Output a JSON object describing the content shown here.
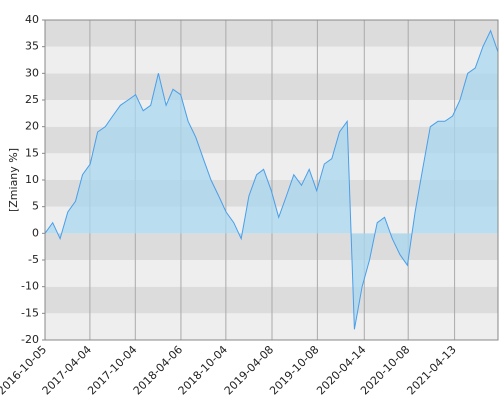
{
  "chart_data": {
    "type": "area",
    "ylabel": "[Zmiany %]",
    "x": [
      "2016-10-05",
      "2016-11-05",
      "2016-12-05",
      "2017-01-05",
      "2017-02-05",
      "2017-03-05",
      "2017-04-05",
      "2017-05-05",
      "2017-06-05",
      "2017-07-05",
      "2017-08-05",
      "2017-09-05",
      "2017-10-05",
      "2017-11-05",
      "2017-12-05",
      "2018-01-05",
      "2018-02-05",
      "2018-03-05",
      "2018-04-05",
      "2018-05-05",
      "2018-06-05",
      "2018-07-05",
      "2018-08-05",
      "2018-09-05",
      "2018-10-05",
      "2018-11-05",
      "2018-12-05",
      "2019-01-05",
      "2019-02-05",
      "2019-03-05",
      "2019-04-05",
      "2019-05-05",
      "2019-06-05",
      "2019-07-05",
      "2019-08-05",
      "2019-09-05",
      "2019-10-05",
      "2019-11-05",
      "2019-12-05",
      "2020-01-05",
      "2020-02-05",
      "2020-03-05",
      "2020-04-05",
      "2020-05-05",
      "2020-06-05",
      "2020-07-05",
      "2020-08-05",
      "2020-09-05",
      "2020-10-05",
      "2020-11-05",
      "2020-12-05",
      "2021-01-05",
      "2021-02-05",
      "2021-03-05",
      "2021-04-05",
      "2021-05-05",
      "2021-06-05",
      "2021-07-05",
      "2021-08-05",
      "2021-09-05",
      "2021-10-05"
    ],
    "values": [
      0,
      2,
      -1,
      4,
      6,
      11,
      13,
      19,
      20,
      22,
      24,
      25,
      26,
      23,
      24,
      30,
      24,
      27,
      26,
      21,
      18,
      14,
      10,
      7,
      4,
      2,
      -1,
      7,
      11,
      12,
      8,
      3,
      7,
      11,
      9,
      12,
      8,
      13,
      14,
      19,
      21,
      -18,
      -10,
      -5,
      2,
      3,
      -1,
      -4,
      -6,
      4,
      12,
      20,
      21,
      21,
      22,
      25,
      30,
      31,
      35,
      38,
      34
    ],
    "color": "#4a9ee8",
    "fill": "#a8d8ef",
    "xlim": [
      "2016-10-05",
      "2021-10-05"
    ],
    "xticks": [
      "2016-10-05",
      "2017-04-04",
      "2017-10-04",
      "2018-04-06",
      "2018-10-04",
      "2019-04-08",
      "2019-10-08",
      "2020-04-14",
      "2020-10-08",
      "2021-04-13"
    ],
    "ylim": [
      -20,
      40
    ],
    "yticks": [
      -20,
      -15,
      -10,
      -5,
      0,
      5,
      10,
      15,
      20,
      25,
      30,
      35,
      40
    ],
    "grid": true
  }
}
